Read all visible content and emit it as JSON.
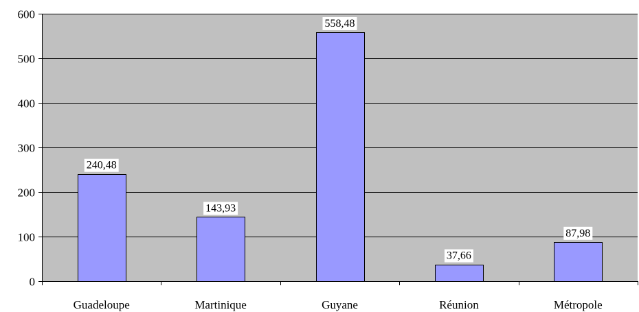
{
  "chart_data": {
    "type": "bar",
    "categories": [
      "Guadeloupe",
      "Martinique",
      "Guyane",
      "Réunion",
      "Métropole"
    ],
    "values": [
      240.48,
      143.93,
      558.48,
      37.66,
      87.98
    ],
    "data_labels": [
      "240,48",
      "143,93",
      "558,48",
      "37,66",
      "87,98"
    ],
    "y_ticks": [
      0,
      100,
      200,
      300,
      400,
      500,
      600
    ],
    "y_tick_labels": [
      "0",
      "100",
      "200",
      "300",
      "400",
      "500",
      "600"
    ],
    "ylim": [
      0,
      600
    ],
    "grid": true,
    "legend": false,
    "colors": {
      "plot_background": "#c0c0c0",
      "bar_fill": "#9999ff",
      "bar_stroke": "#000000",
      "gridline": "#000000",
      "label_background": "#ffffff"
    }
  }
}
